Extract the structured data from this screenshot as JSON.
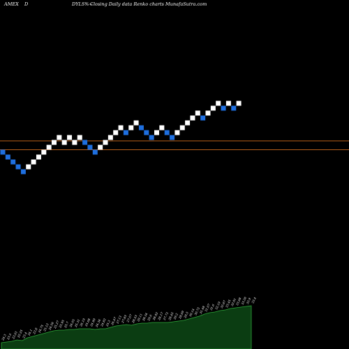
{
  "header": {
    "exchange": "AMEX",
    "symbol": "D",
    "title_fragment": "DYLS%~",
    "description": "Closing Daily data Renko charts MunafaSutra.com"
  },
  "colors": {
    "background": "#000000",
    "up_brick": "#ffffff",
    "down_brick": "#1e6fe0",
    "reference_line": "#b85f1a",
    "volume_fill": "#0b3d12",
    "volume_line": "#2ea83a",
    "text": "#ffffff"
  },
  "chart_data": [
    {
      "type": "renko",
      "title": "",
      "xlabel": "",
      "ylabel": "",
      "grid": false,
      "reference_levels_label": "",
      "bricks": [
        {
          "dir": "down",
          "level": 23
        },
        {
          "dir": "down",
          "level": 22
        },
        {
          "dir": "down",
          "level": 21
        },
        {
          "dir": "down",
          "level": 20
        },
        {
          "dir": "down",
          "level": 19
        },
        {
          "dir": "up",
          "level": 20
        },
        {
          "dir": "up",
          "level": 21
        },
        {
          "dir": "up",
          "level": 22
        },
        {
          "dir": "up",
          "level": 23
        },
        {
          "dir": "up",
          "level": 24
        },
        {
          "dir": "up",
          "level": 25
        },
        {
          "dir": "up",
          "level": 26
        },
        {
          "dir": "up",
          "level": 25
        },
        {
          "dir": "up",
          "level": 26
        },
        {
          "dir": "up",
          "level": 25
        },
        {
          "dir": "up",
          "level": 26
        },
        {
          "dir": "down",
          "level": 25
        },
        {
          "dir": "down",
          "level": 24
        },
        {
          "dir": "down",
          "level": 23
        },
        {
          "dir": "up",
          "level": 24
        },
        {
          "dir": "up",
          "level": 25
        },
        {
          "dir": "up",
          "level": 26
        },
        {
          "dir": "up",
          "level": 27
        },
        {
          "dir": "up",
          "level": 28
        },
        {
          "dir": "down",
          "level": 27
        },
        {
          "dir": "up",
          "level": 28
        },
        {
          "dir": "up",
          "level": 29
        },
        {
          "dir": "down",
          "level": 28
        },
        {
          "dir": "down",
          "level": 27
        },
        {
          "dir": "down",
          "level": 26
        },
        {
          "dir": "up",
          "level": 27
        },
        {
          "dir": "up",
          "level": 28
        },
        {
          "dir": "down",
          "level": 27
        },
        {
          "dir": "down",
          "level": 26
        },
        {
          "dir": "up",
          "level": 27
        },
        {
          "dir": "up",
          "level": 28
        },
        {
          "dir": "up",
          "level": 29
        },
        {
          "dir": "up",
          "level": 30
        },
        {
          "dir": "up",
          "level": 31
        },
        {
          "dir": "down",
          "level": 30
        },
        {
          "dir": "up",
          "level": 31
        },
        {
          "dir": "up",
          "level": 32
        },
        {
          "dir": "up",
          "level": 33
        },
        {
          "dir": "down",
          "level": 32
        },
        {
          "dir": "up",
          "level": 33
        },
        {
          "dir": "down",
          "level": 32
        },
        {
          "dir": "up",
          "level": 33
        }
      ],
      "reference_levels": [
        25.3,
        23.5
      ]
    },
    {
      "type": "area",
      "title": "",
      "xlabel": "",
      "ylabel": "",
      "series": [
        {
          "values": [
            9,
            10,
            11,
            13,
            12,
            16,
            18,
            20,
            22,
            24,
            26,
            27,
            27,
            28,
            28,
            29,
            29,
            29,
            28,
            29,
            29,
            31,
            33,
            34,
            35,
            34,
            36,
            37,
            37,
            38,
            38,
            38,
            38,
            39,
            40,
            41,
            43,
            45,
            47,
            50,
            52,
            53,
            55,
            56,
            58,
            59,
            60,
            61,
            62
          ]
        }
      ],
      "labels": [
        "24.3",
        "23.5",
        "23.61",
        "22.25",
        "23.4",
        "24.1",
        "23.8",
        "24.75",
        "25.12",
        "24.56",
        "25.27",
        "25.95",
        "25.7",
        "26.05",
        "25.31",
        "26.19",
        "25.68",
        "24.99",
        "24.36",
        "24.82",
        "25.3",
        "26.47",
        "27.13",
        "27.83",
        "27.07",
        "28.53",
        "29.11",
        "28.34",
        "29.6",
        "28.92",
        "28.17",
        "27.73",
        "28.45",
        "29.2",
        "28.69",
        "29.5",
        "30.14",
        "30.72",
        "31.48",
        "31.07",
        "31.6",
        "32.19",
        "32.87",
        "33.45",
        "32.91",
        "33.68",
        "33.26",
        "33.9",
        "33.4"
      ]
    }
  ]
}
